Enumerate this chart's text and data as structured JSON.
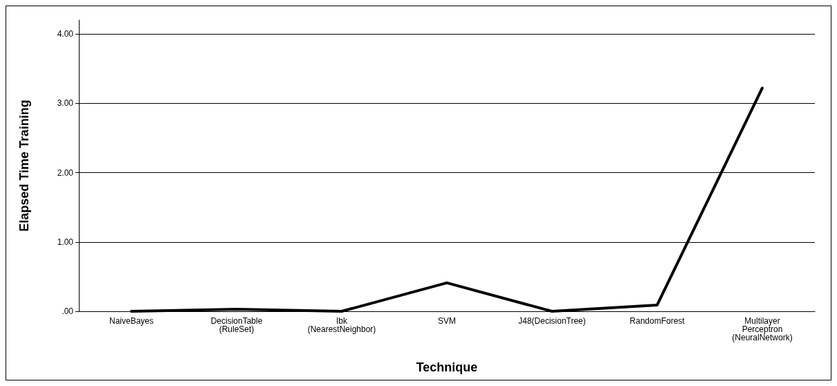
{
  "chart_data": {
    "type": "line",
    "xlabel": "Technique",
    "ylabel": "Elapsed Time Training",
    "categories": [
      "NaiveBayes",
      "DecisionTable\n(RuleSet)",
      "Ibk\n(NearestNeighbor)",
      "SVM",
      "J48(DecisionTree)",
      "RandomForest",
      "Multilayer\nPerceptron\n(NeuralNetwork)"
    ],
    "series": [
      {
        "color": "#000000",
        "values": [
          0.0,
          0.03,
          0.0,
          0.41,
          0.0,
          0.09,
          3.22
        ]
      }
    ],
    "ylim": [
      0,
      4.2
    ],
    "yticks": [
      {
        "value": 0,
        "label": ".00"
      },
      {
        "value": 1,
        "label": "1.00"
      },
      {
        "value": 2,
        "label": "2.00"
      },
      {
        "value": 3,
        "label": "3.00"
      },
      {
        "value": 4,
        "label": "4.00"
      }
    ],
    "grid": "y",
    "marker": "none",
    "line_style": "solid"
  }
}
